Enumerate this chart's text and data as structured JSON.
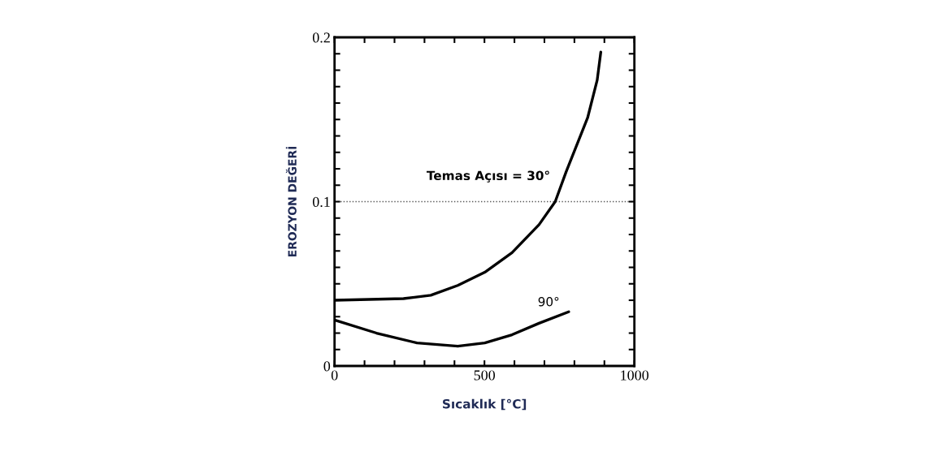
{
  "chart_data": {
    "type": "line",
    "xlabel": "Sıcaklık [°C]",
    "ylabel": "EROZYON DEĞERİ",
    "xlim": [
      0,
      1000
    ],
    "ylim": [
      0,
      0.2
    ],
    "xticks": [
      0,
      {
        "value": 100,
        "label": null
      },
      {
        "value": 200,
        "label": null
      },
      {
        "value": 300,
        "label": null
      },
      {
        "value": 400,
        "label": null
      },
      500,
      {
        "value": 600,
        "label": null
      },
      {
        "value": 700,
        "label": null
      },
      {
        "value": 800,
        "label": null
      },
      {
        "value": 900,
        "label": null
      },
      1000
    ],
    "yticks": [
      0,
      {
        "value": 0.01,
        "label": null
      },
      {
        "value": 0.02,
        "label": null
      },
      {
        "value": 0.03,
        "label": null
      },
      {
        "value": 0.04,
        "label": null
      },
      {
        "value": 0.05,
        "label": null
      },
      {
        "value": 0.06,
        "label": null
      },
      {
        "value": 0.07,
        "label": null
      },
      {
        "value": 0.08,
        "label": null
      },
      {
        "value": 0.09,
        "label": null
      },
      0.1,
      {
        "value": 0.11,
        "label": null
      },
      {
        "value": 0.12,
        "label": null
      },
      {
        "value": 0.13,
        "label": null
      },
      {
        "value": 0.14,
        "label": null
      },
      {
        "value": 0.15,
        "label": null
      },
      {
        "value": 0.16,
        "label": null
      },
      {
        "value": 0.17,
        "label": null
      },
      {
        "value": 0.18,
        "label": null
      },
      {
        "value": 0.19,
        "label": null
      },
      0.2
    ],
    "grid": false,
    "legend": false,
    "marker": "none",
    "line_style": "solid",
    "ref_lines": [
      {
        "axis": "y",
        "value": 0.1,
        "label": null,
        "color": "#555555",
        "line_style": "dotted"
      }
    ],
    "series": [
      {
        "name": "Temas Açısı = 30°",
        "color": "#000000",
        "x": [
          0,
          230,
          321,
          411,
          501,
          592,
          682,
          736,
          772,
          844,
          876,
          888
        ],
        "values": [
          0.04,
          0.041,
          0.043,
          0.049,
          0.057,
          0.069,
          0.086,
          0.1,
          0.118,
          0.151,
          0.174,
          0.191
        ]
      },
      {
        "name": "90°",
        "color": "#000000",
        "x": [
          0,
          140,
          275,
          411,
          501,
          592,
          682,
          781
        ],
        "values": [
          0.028,
          0.02,
          0.014,
          0.012,
          0.014,
          0.019,
          0.026,
          0.033
        ]
      }
    ]
  }
}
